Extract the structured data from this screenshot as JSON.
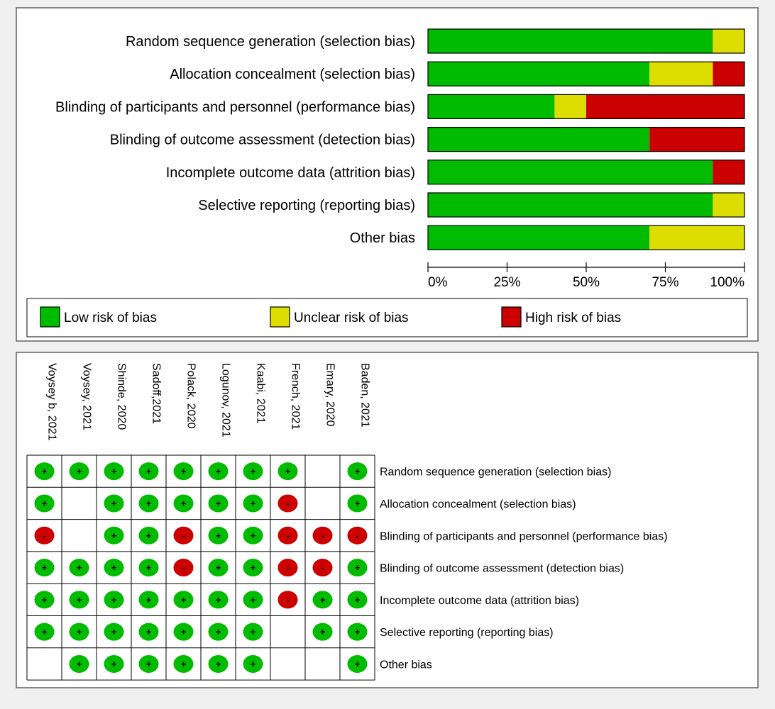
{
  "chart_data": [
    {
      "type": "bar",
      "subtype": "stacked-horizontal-percent",
      "categories": [
        "Random sequence generation (selection bias)",
        "Allocation concealment (selection bias)",
        "Blinding of participants and personnel (performance bias)",
        "Blinding of outcome assessment (detection bias)",
        "Incomplete outcome data (attrition bias)",
        "Selective reporting (reporting bias)",
        "Other bias"
      ],
      "series": [
        {
          "name": "Low risk of bias",
          "color": "#00bb00",
          "values": [
            90,
            70,
            40,
            70,
            90,
            90,
            70
          ]
        },
        {
          "name": "Unclear risk of bias",
          "color": "#dddd00",
          "values": [
            10,
            20,
            10,
            0,
            0,
            10,
            30
          ]
        },
        {
          "name": "High risk of bias",
          "color": "#cc0000",
          "values": [
            0,
            10,
            50,
            30,
            10,
            0,
            0
          ]
        }
      ],
      "x_ticks": [
        "0%",
        "25%",
        "50%",
        "75%",
        "100%"
      ],
      "xlim": [
        0,
        100
      ],
      "legend": [
        "Low risk of bias",
        "Unclear risk of bias",
        "High risk of bias"
      ],
      "legend_position": "bottom"
    },
    {
      "type": "table",
      "subtype": "risk-of-bias-summary",
      "studies": [
        "Voysey b, 2021",
        "Voysey, 2021",
        "Shinde, 2020",
        "Sadoff,2021",
        "Polack, 2020",
        "Logunov, 2021",
        "Kaabi, 2021",
        "French, 2021",
        "Emary, 2020",
        "Baden, 2021"
      ],
      "domains": [
        "Random sequence generation (selection bias)",
        "Allocation concealment (selection bias)",
        "Blinding of participants and personnel (performance bias)",
        "Blinding of outcome assessment (detection bias)",
        "Incomplete outcome data (attrition bias)",
        "Selective reporting (reporting bias)",
        "Other bias"
      ],
      "judgements": [
        [
          "low",
          "low",
          "low",
          "low",
          "low",
          "low",
          "low",
          "low",
          "unclear",
          "low"
        ],
        [
          "low",
          "unclear",
          "low",
          "low",
          "low",
          "low",
          "low",
          "high",
          "unclear",
          "low"
        ],
        [
          "high",
          "unclear",
          "low",
          "low",
          "high",
          "low",
          "low",
          "high",
          "high",
          "high"
        ],
        [
          "low",
          "low",
          "low",
          "low",
          "high",
          "low",
          "low",
          "high",
          "high",
          "low"
        ],
        [
          "low",
          "low",
          "low",
          "low",
          "low",
          "low",
          "low",
          "high",
          "low",
          "low"
        ],
        [
          "low",
          "low",
          "low",
          "low",
          "low",
          "low",
          "low",
          "unclear",
          "low",
          "low"
        ],
        [
          "unclear",
          "low",
          "low",
          "low",
          "low",
          "low",
          "low",
          "unclear",
          "unclear",
          "low"
        ]
      ],
      "symbols": {
        "low": "+",
        "high": "-"
      },
      "colors": {
        "low": "#00bb00",
        "high": "#cc0000"
      }
    }
  ]
}
